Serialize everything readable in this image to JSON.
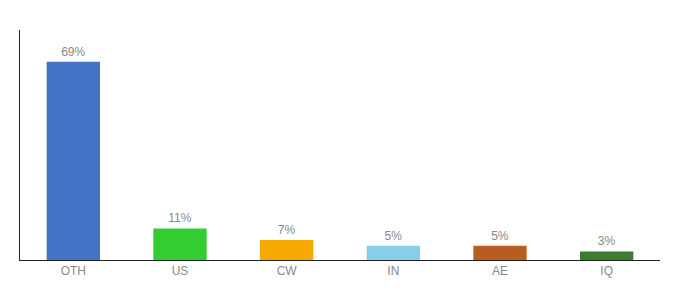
{
  "chart_data": {
    "type": "bar",
    "categories": [
      "OTH",
      "US",
      "CW",
      "IN",
      "AE",
      "IQ"
    ],
    "values": [
      69,
      11,
      7,
      5,
      5,
      3
    ],
    "value_labels": [
      "69%",
      "11%",
      "7%",
      "5%",
      "5%",
      "3%"
    ],
    "colors": [
      "#4472c4",
      "#33cc33",
      "#f5a800",
      "#87ceeb",
      "#b85c20",
      "#3a7d2c"
    ],
    "ylim": [
      0,
      80
    ],
    "data_labels": true,
    "tick_labels": "x",
    "grid": false
  }
}
